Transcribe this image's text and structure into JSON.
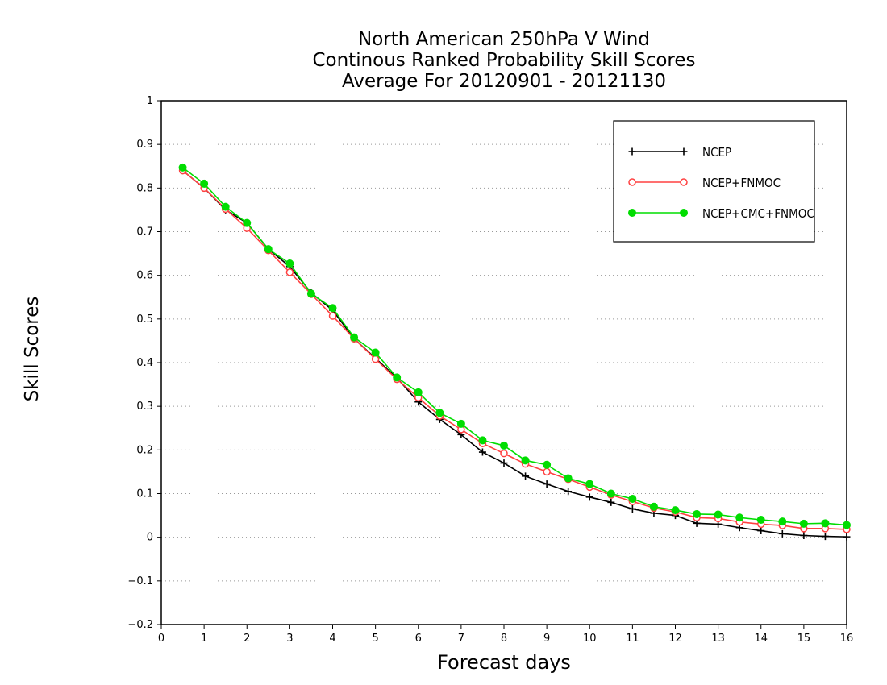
{
  "chart_data": {
    "type": "line",
    "title": [
      "North American 250hPa V Wind",
      "Continous Ranked Probability Skill Scores",
      "Average For 20120901 - 20121130"
    ],
    "xlabel": "Forecast days",
    "ylabel": "Skill Scores",
    "xlim": [
      0,
      16
    ],
    "ylim": [
      -0.2,
      1
    ],
    "xticks": [
      "0",
      "1",
      "2",
      "3",
      "4",
      "5",
      "6",
      "7",
      "8",
      "9",
      "10",
      "11",
      "12",
      "13",
      "14",
      "15",
      "16"
    ],
    "yticks": [
      "-0.2",
      "-0.1",
      "0",
      "0.1",
      "0.2",
      "0.3",
      "0.4",
      "0.5",
      "0.6",
      "0.7",
      "0.8",
      "0.9",
      "1"
    ],
    "grid": "horizontal dotted",
    "legend_position": "top-right",
    "x": [
      0.5,
      1,
      1.5,
      2,
      2.5,
      3,
      3.5,
      4,
      4.5,
      5,
      5.5,
      6,
      6.5,
      7,
      7.5,
      8,
      8.5,
      9,
      9.5,
      10,
      10.5,
      11,
      11.5,
      12,
      12.5,
      13,
      13.5,
      14,
      14.5,
      15,
      15.5,
      16
    ],
    "series": [
      {
        "name": "NCEP",
        "color": "#000000",
        "marker": "plus",
        "values": [
          0.84,
          0.8,
          0.75,
          0.72,
          0.66,
          0.62,
          0.56,
          0.52,
          0.455,
          0.41,
          0.365,
          0.31,
          0.27,
          0.235,
          0.195,
          0.17,
          0.14,
          0.122,
          0.105,
          0.092,
          0.08,
          0.065,
          0.055,
          0.05,
          0.032,
          0.03,
          0.022,
          0.015,
          0.008,
          0.004,
          0.002,
          0.001
        ]
      },
      {
        "name": "NCEP+FNMOC",
        "color": "#ff4040",
        "marker": "open-circle",
        "values": [
          0.84,
          0.8,
          0.752,
          0.708,
          0.657,
          0.607,
          0.557,
          0.507,
          0.455,
          0.408,
          0.362,
          0.32,
          0.278,
          0.247,
          0.215,
          0.192,
          0.168,
          0.15,
          0.133,
          0.115,
          0.097,
          0.082,
          0.067,
          0.058,
          0.045,
          0.043,
          0.035,
          0.03,
          0.027,
          0.02,
          0.02,
          0.018
        ]
      },
      {
        "name": "NCEP+CMC+FNMOC",
        "color": "#00dd00",
        "marker": "filled-circle",
        "values": [
          0.847,
          0.81,
          0.757,
          0.72,
          0.66,
          0.627,
          0.558,
          0.525,
          0.458,
          0.423,
          0.366,
          0.332,
          0.285,
          0.26,
          0.222,
          0.21,
          0.176,
          0.166,
          0.135,
          0.122,
          0.1,
          0.088,
          0.07,
          0.062,
          0.053,
          0.052,
          0.045,
          0.04,
          0.036,
          0.031,
          0.032,
          0.028
        ]
      }
    ]
  }
}
